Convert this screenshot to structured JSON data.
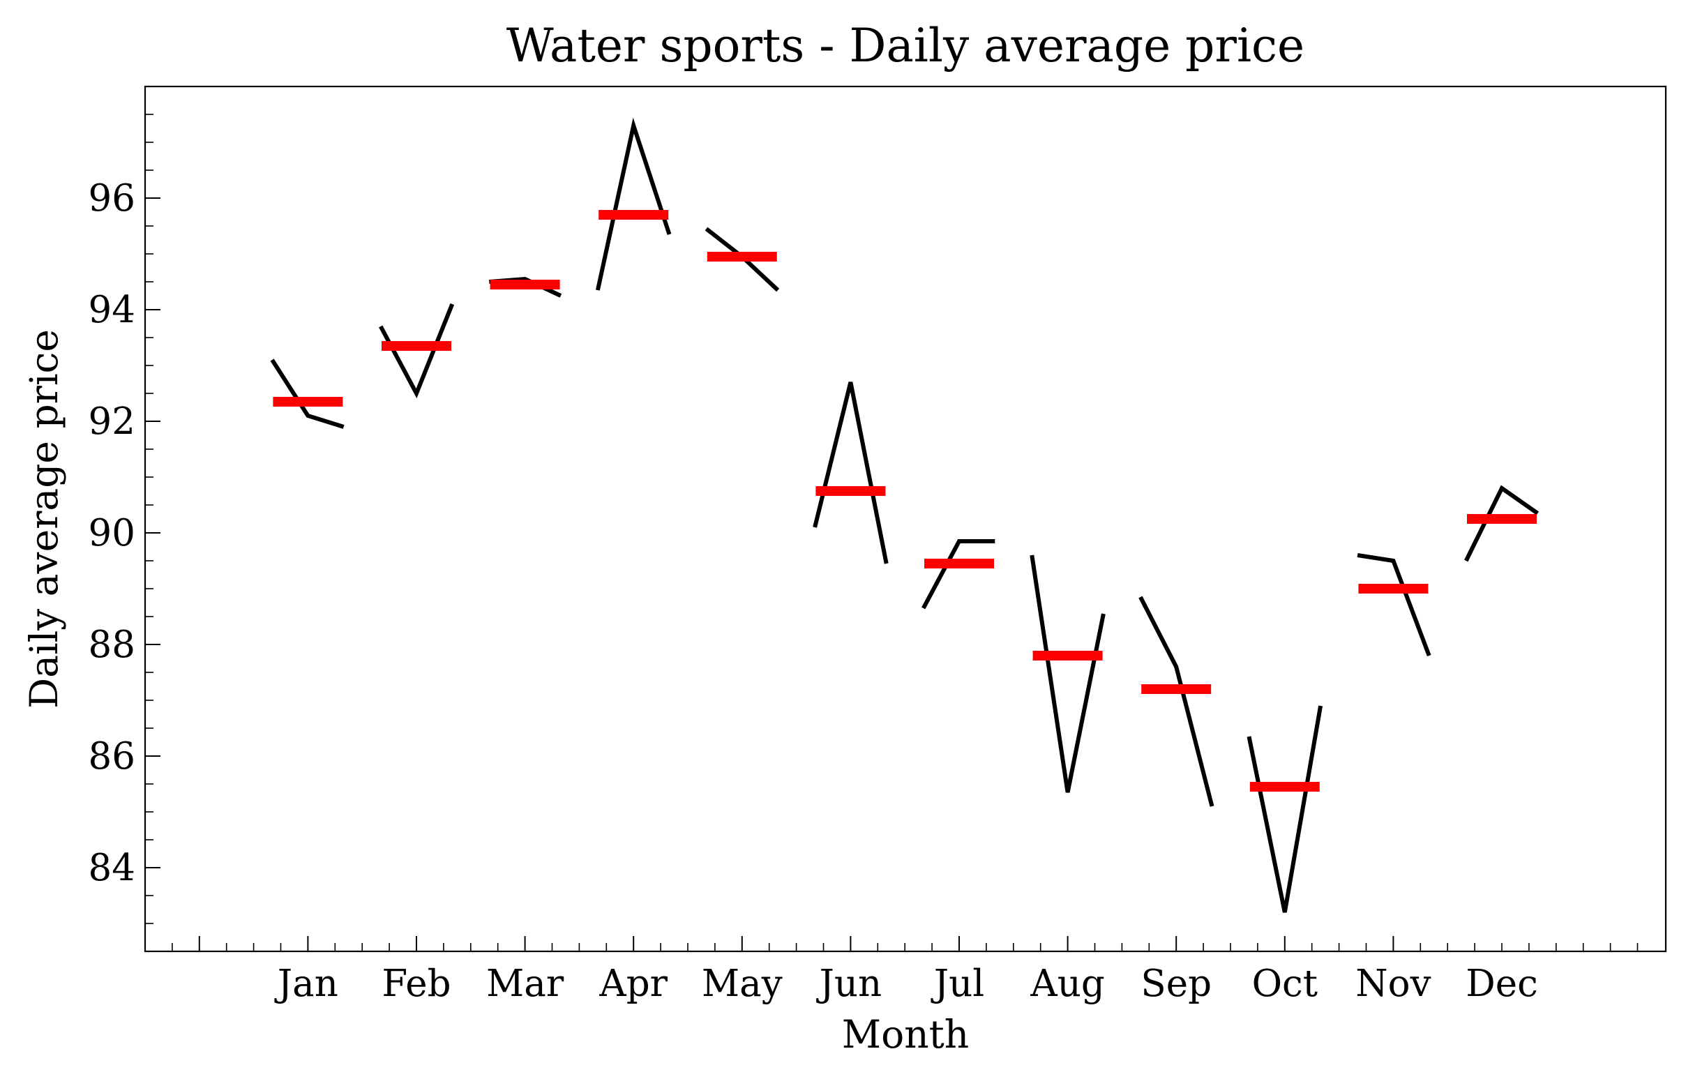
{
  "chart_data": {
    "type": "line",
    "title": "Water sports - Daily average price",
    "xlabel": "Month",
    "ylabel": "Daily average price",
    "categories": [
      "Jan",
      "Feb",
      "Mar",
      "Apr",
      "May",
      "Jun",
      "Jul",
      "Aug",
      "Sep",
      "Oct",
      "Nov",
      "Dec"
    ],
    "ylim": [
      82.5,
      98.0
    ],
    "yticks": [
      84,
      86,
      88,
      90,
      92,
      94,
      96
    ],
    "yminor_step": 0.5,
    "grid": false,
    "series": [
      {
        "kind": "daily-profile",
        "color": "#000000",
        "points": [
          [
            93.1,
            92.1,
            91.9
          ],
          [
            93.7,
            92.5,
            94.1
          ],
          [
            94.5,
            94.55,
            94.25
          ],
          [
            94.35,
            97.3,
            95.35
          ],
          [
            95.45,
            94.95,
            94.35
          ],
          [
            90.1,
            92.7,
            89.45
          ],
          [
            88.65,
            89.85,
            89.85
          ],
          [
            89.6,
            85.35,
            88.55
          ],
          [
            88.85,
            87.6,
            85.1
          ],
          [
            86.35,
            83.2,
            86.9
          ],
          [
            89.6,
            89.5,
            87.8
          ],
          [
            89.5,
            90.8,
            90.35
          ]
        ]
      },
      {
        "kind": "monthly-mean",
        "color": "#ff0000",
        "values": [
          92.35,
          93.35,
          94.45,
          95.7,
          94.95,
          90.75,
          89.45,
          87.8,
          87.2,
          85.45,
          89.0,
          90.25
        ]
      }
    ]
  }
}
